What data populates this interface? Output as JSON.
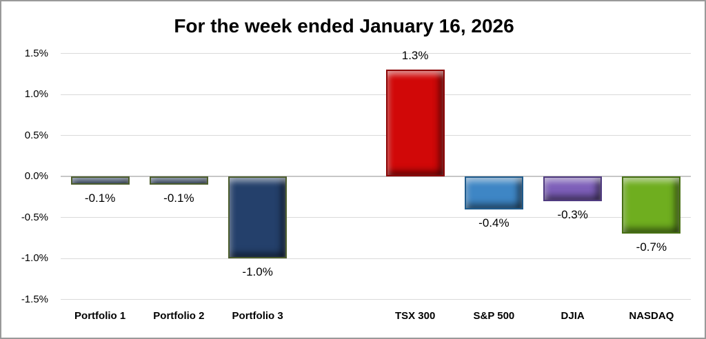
{
  "chart_data": {
    "type": "bar",
    "title": "For the week ended January 16, 2026",
    "xlabel": "",
    "ylabel": "",
    "ylim": [
      -1.5,
      1.5
    ],
    "ytick_step": 0.5,
    "grid": true,
    "legend": false,
    "yticks": [
      {
        "value": 1.5,
        "label": "1.5%"
      },
      {
        "value": 1.0,
        "label": "1.0%"
      },
      {
        "value": 0.5,
        "label": "0.5%"
      },
      {
        "value": 0.0,
        "label": "0.0%"
      },
      {
        "value": -0.5,
        "label": "-0.5%"
      },
      {
        "value": -1.0,
        "label": "-1.0%"
      },
      {
        "value": -1.5,
        "label": "-1.5%"
      }
    ],
    "groups": [
      {
        "name": "portfolios",
        "bars": [
          {
            "category": "Portfolio 1",
            "value": -0.1,
            "label": "-0.1%",
            "color": "#24406b",
            "border": "#4d5e2e"
          },
          {
            "category": "Portfolio 2",
            "value": -0.1,
            "label": "-0.1%",
            "color": "#24406b",
            "border": "#4d5e2e"
          },
          {
            "category": "Portfolio 3",
            "value": -1.0,
            "label": "-1.0%",
            "color": "#24406b",
            "border": "#4d5e2e"
          }
        ]
      },
      {
        "name": "indexes",
        "bars": [
          {
            "category": "TSX 300",
            "value": 1.3,
            "label": "1.3%",
            "color": "#d10808",
            "border": "#8b0304"
          },
          {
            "category": "S&P 500",
            "value": -0.4,
            "label": "-0.4%",
            "color": "#3e86c5",
            "border": "#1f5b8c"
          },
          {
            "category": "DJIA",
            "value": -0.3,
            "label": "-0.3%",
            "color": "#7d5fb9",
            "border": "#4f3a80"
          },
          {
            "category": "NASDAQ",
            "value": -0.7,
            "label": "-0.7%",
            "color": "#6fae1f",
            "border": "#477013"
          }
        ]
      }
    ]
  }
}
